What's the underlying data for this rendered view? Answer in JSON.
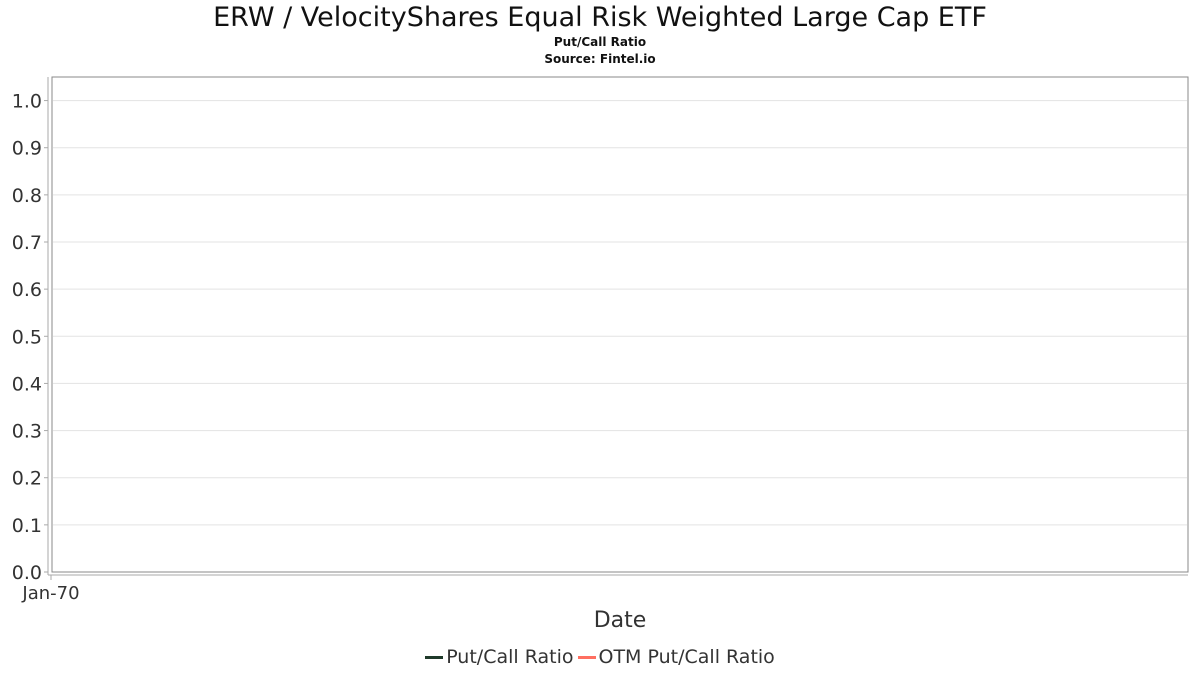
{
  "chart_data": {
    "type": "line",
    "title": "ERW / VelocityShares Equal Risk Weighted Large Cap ETF",
    "subtitle_lines": [
      "Put/Call Ratio",
      "Source: Fintel.io"
    ],
    "xlabel": "Date",
    "ylabel": "",
    "x_ticks": [
      "Jan-70"
    ],
    "y_ticks": [
      "0.0",
      "0.1",
      "0.2",
      "0.3",
      "0.4",
      "0.5",
      "0.6",
      "0.7",
      "0.8",
      "0.9",
      "1.0"
    ],
    "ylim": [
      0,
      1.05
    ],
    "grid": true,
    "legend_position": "bottom",
    "series": [
      {
        "name": "Put/Call Ratio",
        "color": "#1f3a2a",
        "values": []
      },
      {
        "name": "OTM Put/Call Ratio",
        "color": "#ff6f61",
        "values": []
      }
    ]
  }
}
